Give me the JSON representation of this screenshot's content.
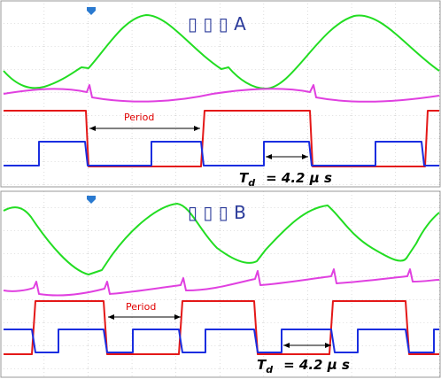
{
  "panels": [
    {
      "label": "▯ ▯ ▯ A",
      "period": "Period",
      "td_symbol": "T",
      "td_sub": "d",
      "td_value": "= 4.2 μ s"
    },
    {
      "label": "▯ ▯ ▯ B",
      "period": "Period",
      "td_symbol": "T",
      "td_sub": "d",
      "td_value": "= 4.2 μ s"
    }
  ]
}
